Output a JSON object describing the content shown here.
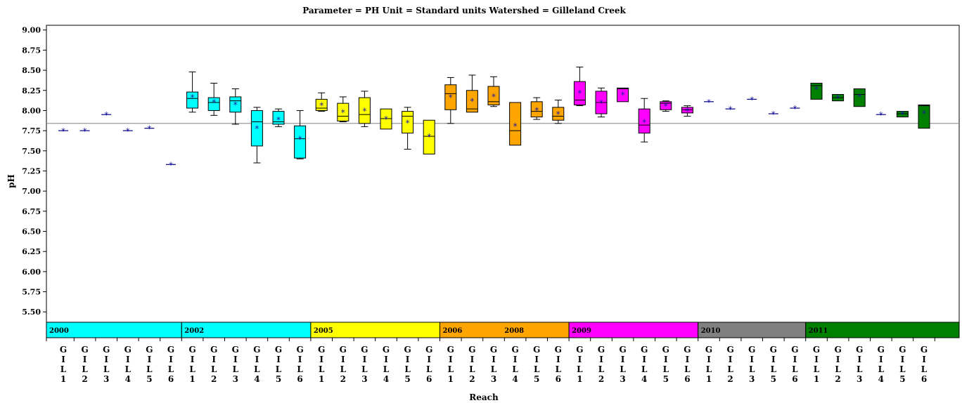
{
  "chart_data": {
    "type": "box",
    "title": "Parameter = PH  Unit = Standard units  Watershed = Gilleland Creek",
    "xlabel": "Reach",
    "ylabel": "pH",
    "ylim": [
      5.38,
      9.05
    ],
    "yticks": [
      "5.50",
      "5.75",
      "6.00",
      "6.25",
      "6.50",
      "6.75",
      "7.00",
      "7.25",
      "7.50",
      "7.75",
      "8.00",
      "8.25",
      "8.50",
      "8.75",
      "9.00"
    ],
    "reference_line": 7.84,
    "bands": [
      {
        "label": "2000",
        "color": "#00ffff",
        "start": 0,
        "end": 6
      },
      {
        "label": "2002",
        "color": "#00ffff",
        "start": 6,
        "end": 12
      },
      {
        "label": "2005",
        "color": "#ffff00",
        "start": 12,
        "end": 18
      },
      {
        "label": "2006",
        "color": "#ffa500",
        "start": 18,
        "end": 24
      },
      {
        "label": "2008",
        "color": "#ffa500",
        "start": 18,
        "end": 24
      },
      {
        "label": "2009",
        "color": "#ff00ff",
        "start": 24,
        "end": 30
      },
      {
        "label": "2010",
        "color": "#808080",
        "start": 30,
        "end": 35
      },
      {
        "label": "2011",
        "color": "#008000",
        "start": 35,
        "end": 41
      }
    ],
    "categories": [
      {
        "reach": "GIL1",
        "year": "2000",
        "color": "#00ffff",
        "min": 7.75,
        "q1": 7.75,
        "median": 7.75,
        "q3": 7.75,
        "max": 7.75,
        "mean": 7.75
      },
      {
        "reach": "GIL2",
        "year": "2000",
        "color": "#00ffff",
        "min": 7.75,
        "q1": 7.75,
        "median": 7.75,
        "q3": 7.75,
        "max": 7.75,
        "mean": 7.75
      },
      {
        "reach": "GIL3",
        "year": "2000",
        "color": "#00ffff",
        "min": 7.95,
        "q1": 7.95,
        "median": 7.95,
        "q3": 7.95,
        "max": 7.95,
        "mean": 7.95
      },
      {
        "reach": "GIL4",
        "year": "2000",
        "color": "#00ffff",
        "min": 7.75,
        "q1": 7.75,
        "median": 7.75,
        "q3": 7.75,
        "max": 7.75,
        "mean": 7.75
      },
      {
        "reach": "GIL5",
        "year": "2000",
        "color": "#00ffff",
        "min": 7.78,
        "q1": 7.78,
        "median": 7.78,
        "q3": 7.78,
        "max": 7.78,
        "mean": 7.78
      },
      {
        "reach": "GIL6",
        "year": "2000",
        "color": "#00ffff",
        "min": 7.33,
        "q1": 7.33,
        "median": 7.33,
        "q3": 7.33,
        "max": 7.33,
        "mean": 7.33
      },
      {
        "reach": "GIL1",
        "year": "2002",
        "color": "#00ffff",
        "min": 7.98,
        "q1": 8.03,
        "median": 8.15,
        "q3": 8.23,
        "max": 8.48,
        "mean": 8.17
      },
      {
        "reach": "GIL2",
        "year": "2002",
        "color": "#00ffff",
        "min": 7.94,
        "q1": 8.0,
        "median": 8.1,
        "q3": 8.16,
        "max": 8.34,
        "mean": 8.11
      },
      {
        "reach": "GIL3",
        "year": "2002",
        "color": "#00ffff",
        "min": 7.83,
        "q1": 7.98,
        "median": 8.12,
        "q3": 8.17,
        "max": 8.27,
        "mean": 8.08
      },
      {
        "reach": "GIL4",
        "year": "2002",
        "color": "#00ffff",
        "min": 7.35,
        "q1": 7.56,
        "median": 7.86,
        "q3": 8.0,
        "max": 8.04,
        "mean": 7.78
      },
      {
        "reach": "GIL5",
        "year": "2002",
        "color": "#00ffff",
        "min": 7.8,
        "q1": 7.83,
        "median": 7.86,
        "q3": 7.99,
        "max": 8.02,
        "mean": 7.89
      },
      {
        "reach": "GIL6",
        "year": "2002",
        "color": "#00ffff",
        "min": 7.4,
        "q1": 7.41,
        "median": 7.65,
        "q3": 7.81,
        "max": 8.0,
        "mean": 7.65
      },
      {
        "reach": "GIL1",
        "year": "2005",
        "color": "#ffff00",
        "min": 7.99,
        "q1": 8.0,
        "median": 8.03,
        "q3": 8.14,
        "max": 8.22,
        "mean": 8.07
      },
      {
        "reach": "GIL2",
        "year": "2005",
        "color": "#ffff00",
        "min": 7.86,
        "q1": 7.87,
        "median": 7.93,
        "q3": 8.09,
        "max": 8.17,
        "mean": 7.98
      },
      {
        "reach": "GIL3",
        "year": "2005",
        "color": "#ffff00",
        "min": 7.8,
        "q1": 7.84,
        "median": 7.95,
        "q3": 8.16,
        "max": 8.24,
        "mean": 8.0
      },
      {
        "reach": "GIL4",
        "year": "2005",
        "color": "#ffff00",
        "min": 7.77,
        "q1": 7.77,
        "median": 7.9,
        "q3": 8.02,
        "max": 8.02,
        "mean": 7.9
      },
      {
        "reach": "GIL5",
        "year": "2005",
        "color": "#ffff00",
        "min": 7.52,
        "q1": 7.72,
        "median": 7.93,
        "q3": 7.99,
        "max": 8.04,
        "mean": 7.85
      },
      {
        "reach": "GIL6",
        "year": "2005",
        "color": "#ffff00",
        "min": 7.46,
        "q1": 7.46,
        "median": 7.68,
        "q3": 7.88,
        "max": 7.88,
        "mean": 7.68
      },
      {
        "reach": "GIL1",
        "year": "2006",
        "color": "#ffa500",
        "min": 7.84,
        "q1": 8.01,
        "median": 8.21,
        "q3": 8.32,
        "max": 8.41,
        "mean": 8.17
      },
      {
        "reach": "GIL2",
        "year": "2006",
        "color": "#ffa500",
        "min": 7.98,
        "q1": 7.98,
        "median": 8.02,
        "q3": 8.25,
        "max": 8.44,
        "mean": 8.12
      },
      {
        "reach": "GIL3",
        "year": "2006",
        "color": "#ffa500",
        "min": 8.05,
        "q1": 8.07,
        "median": 8.11,
        "q3": 8.3,
        "max": 8.42,
        "mean": 8.18
      },
      {
        "reach": "GIL4",
        "year": "2008",
        "color": "#ffa500",
        "min": 7.57,
        "q1": 7.57,
        "median": 7.75,
        "q3": 8.1,
        "max": 8.1,
        "mean": 7.81
      },
      {
        "reach": "GIL5",
        "year": "2008",
        "color": "#ffa500",
        "min": 7.89,
        "q1": 7.92,
        "median": 7.99,
        "q3": 8.11,
        "max": 8.16,
        "mean": 8.01
      },
      {
        "reach": "GIL6",
        "year": "2008",
        "color": "#ffa500",
        "min": 7.84,
        "q1": 7.88,
        "median": 7.93,
        "q3": 8.04,
        "max": 8.13,
        "mean": 7.96
      },
      {
        "reach": "GIL1",
        "year": "2009",
        "color": "#ff00ff",
        "min": 8.06,
        "q1": 8.07,
        "median": 8.13,
        "q3": 8.36,
        "max": 8.54,
        "mean": 8.22
      },
      {
        "reach": "GIL2",
        "year": "2009",
        "color": "#ff00ff",
        "min": 7.92,
        "q1": 7.96,
        "median": 8.1,
        "q3": 8.24,
        "max": 8.28,
        "mean": 8.1
      },
      {
        "reach": "GIL3",
        "year": "2009",
        "color": "#ff00ff",
        "min": 8.11,
        "q1": 8.11,
        "median": 8.27,
        "q3": 8.28,
        "max": 8.28,
        "mean": 8.2
      },
      {
        "reach": "GIL4",
        "year": "2009",
        "color": "#ff00ff",
        "min": 7.61,
        "q1": 7.72,
        "median": 7.82,
        "q3": 8.02,
        "max": 8.15,
        "mean": 7.86
      },
      {
        "reach": "GIL5",
        "year": "2009",
        "color": "#ff00ff",
        "min": 7.99,
        "q1": 8.01,
        "median": 8.09,
        "q3": 8.11,
        "max": 8.12,
        "mean": 8.06
      },
      {
        "reach": "GIL6",
        "year": "2009",
        "color": "#ff00ff",
        "min": 7.93,
        "q1": 7.97,
        "median": 8.01,
        "q3": 8.04,
        "max": 8.06,
        "mean": 8.0
      },
      {
        "reach": "GIL1",
        "year": "2010",
        "color": "#808080",
        "min": 8.11,
        "q1": 8.11,
        "median": 8.11,
        "q3": 8.11,
        "max": 8.11,
        "mean": 8.11
      },
      {
        "reach": "GIL2",
        "year": "2010",
        "color": "#808080",
        "min": 8.02,
        "q1": 8.02,
        "median": 8.02,
        "q3": 8.02,
        "max": 8.02,
        "mean": 8.02
      },
      {
        "reach": "GIL3",
        "year": "2010",
        "color": "#808080",
        "min": 8.14,
        "q1": 8.14,
        "median": 8.14,
        "q3": 8.14,
        "max": 8.14,
        "mean": 8.14
      },
      {
        "reach": "GIL5",
        "year": "2010",
        "color": "#808080",
        "min": 7.96,
        "q1": 7.96,
        "median": 7.96,
        "q3": 7.96,
        "max": 7.96,
        "mean": 7.96
      },
      {
        "reach": "GIL6",
        "year": "2010",
        "color": "#808080",
        "min": 8.03,
        "q1": 8.03,
        "median": 8.03,
        "q3": 8.03,
        "max": 8.03,
        "mean": 8.03
      },
      {
        "reach": "GIL1",
        "year": "2011",
        "color": "#008000",
        "min": 8.14,
        "q1": 8.14,
        "median": 8.31,
        "q3": 8.34,
        "max": 8.34,
        "mean": 8.27
      },
      {
        "reach": "GIL2",
        "year": "2011",
        "color": "#008000",
        "min": 8.12,
        "q1": 8.12,
        "median": 8.16,
        "q3": 8.2,
        "max": 8.2,
        "mean": 8.16
      },
      {
        "reach": "GIL3",
        "year": "2011",
        "color": "#008000",
        "min": 8.05,
        "q1": 8.05,
        "median": 8.2,
        "q3": 8.27,
        "max": 8.27,
        "mean": 8.18
      },
      {
        "reach": "GIL4",
        "year": "2011",
        "color": "#008000",
        "min": 7.95,
        "q1": 7.95,
        "median": 7.95,
        "q3": 7.95,
        "max": 7.95,
        "mean": 7.95
      },
      {
        "reach": "GIL5",
        "year": "2011",
        "color": "#008000",
        "min": 7.92,
        "q1": 7.92,
        "median": 7.96,
        "q3": 7.99,
        "max": 7.99,
        "mean": 7.96
      },
      {
        "reach": "GIL6",
        "year": "2011",
        "color": "#008000",
        "min": 7.78,
        "q1": 7.78,
        "median": 8.06,
        "q3": 8.07,
        "max": 8.07,
        "mean": 7.97
      }
    ]
  }
}
